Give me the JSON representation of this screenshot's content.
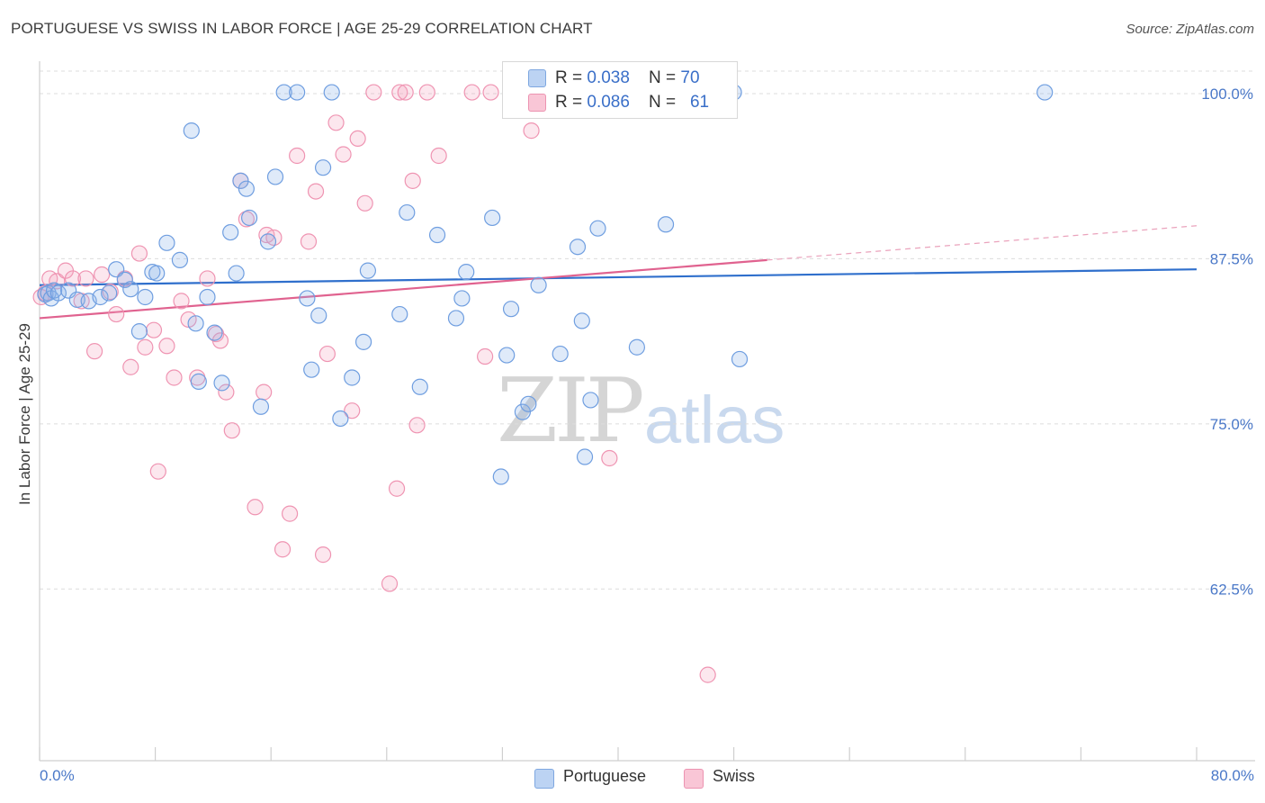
{
  "title": "PORTUGUESE VS SWISS IN LABOR FORCE | AGE 25-29 CORRELATION CHART",
  "source": "Source: ZipAtlas.com",
  "watermark": {
    "zip": "ZIP",
    "atlas": "atlas"
  },
  "colors": {
    "portuguese": "#6f9ee0",
    "swiss": "#ef94b2",
    "portuguese_line": "#2f6fcc",
    "swiss_line": "#e0628f"
  },
  "legend_top": {
    "portuguese": {
      "r_label": "R = ",
      "r_value": "0.038",
      "n_label": "N = ",
      "n_value": "70"
    },
    "swiss": {
      "r_label": "R = ",
      "r_value": "0.086",
      "n_label": "N = ",
      "n_value": "61"
    }
  },
  "chart_data": {
    "type": "scatter",
    "title": "PORTUGUESE VS SWISS IN LABOR FORCE | AGE 25-29 CORRELATION CHART",
    "xlabel": "",
    "ylabel": "In Labor Force | Age 25-29",
    "xlim": [
      0,
      80
    ],
    "ylim": [
      49.5,
      103
    ],
    "x_tick_labels": [
      "0.0%",
      "80.0%"
    ],
    "y_ticks": [
      62.5,
      75.0,
      87.5,
      100.0
    ],
    "y_tick_labels": [
      "62.5%",
      "75.0%",
      "87.5%",
      "100.0%"
    ],
    "grid": true,
    "legend_position": "top-center",
    "series": [
      {
        "name": "Portuguese",
        "r": 0.038,
        "n": 70,
        "trend": {
          "x": [
            0,
            80
          ],
          "y": [
            85.5,
            86.7
          ]
        },
        "points": [
          [
            0.4,
            84.8
          ],
          [
            0.6,
            84.9
          ],
          [
            0.8,
            84.5
          ],
          [
            1.0,
            85.1
          ],
          [
            1.3,
            84.9
          ],
          [
            2.0,
            85.1
          ],
          [
            2.6,
            84.4
          ],
          [
            3.4,
            84.3
          ],
          [
            4.2,
            84.6
          ],
          [
            4.8,
            84.9
          ],
          [
            5.3,
            86.7
          ],
          [
            5.9,
            85.9
          ],
          [
            6.3,
            85.2
          ],
          [
            6.9,
            82.0
          ],
          [
            7.3,
            84.6
          ],
          [
            7.8,
            86.5
          ],
          [
            8.1,
            86.4
          ],
          [
            8.8,
            88.7
          ],
          [
            9.7,
            87.4
          ],
          [
            10.5,
            97.2
          ],
          [
            10.8,
            82.6
          ],
          [
            11.0,
            78.2
          ],
          [
            11.6,
            84.6
          ],
          [
            12.1,
            81.9
          ],
          [
            12.6,
            78.1
          ],
          [
            13.2,
            89.5
          ],
          [
            13.6,
            86.4
          ],
          [
            13.9,
            93.4
          ],
          [
            14.3,
            92.8
          ],
          [
            14.5,
            90.6
          ],
          [
            15.3,
            76.3
          ],
          [
            15.8,
            88.8
          ],
          [
            16.3,
            93.7
          ],
          [
            16.9,
            100.1
          ],
          [
            17.8,
            100.1
          ],
          [
            18.5,
            84.5
          ],
          [
            18.8,
            79.1
          ],
          [
            19.3,
            83.2
          ],
          [
            19.6,
            94.4
          ],
          [
            20.2,
            100.1
          ],
          [
            20.8,
            75.4
          ],
          [
            21.6,
            78.5
          ],
          [
            22.4,
            81.2
          ],
          [
            22.7,
            86.6
          ],
          [
            24.9,
            83.3
          ],
          [
            25.4,
            91.0
          ],
          [
            26.3,
            77.8
          ],
          [
            27.5,
            89.3
          ],
          [
            28.8,
            83.0
          ],
          [
            29.2,
            84.5
          ],
          [
            29.5,
            86.5
          ],
          [
            31.3,
            90.6
          ],
          [
            31.9,
            71.0
          ],
          [
            32.3,
            80.2
          ],
          [
            32.6,
            83.7
          ],
          [
            33.4,
            75.9
          ],
          [
            33.8,
            76.5
          ],
          [
            34.5,
            85.5
          ],
          [
            35.0,
            100.1
          ],
          [
            36.0,
            80.3
          ],
          [
            37.2,
            88.4
          ],
          [
            37.5,
            82.8
          ],
          [
            37.7,
            72.5
          ],
          [
            38.1,
            76.8
          ],
          [
            38.6,
            89.8
          ],
          [
            41.3,
            80.8
          ],
          [
            43.3,
            90.1
          ],
          [
            48.0,
            100.1
          ],
          [
            48.4,
            79.9
          ],
          [
            69.5,
            100.1
          ]
        ]
      },
      {
        "name": "Swiss",
        "r": 0.086,
        "n": 61,
        "trend": {
          "x": [
            0,
            50.3
          ],
          "y": [
            83.0,
            87.4
          ],
          "extended": {
            "x": [
              50.3,
              80
            ],
            "y": [
              87.4,
              90.0
            ]
          }
        },
        "points": [
          [
            0.1,
            84.6
          ],
          [
            0.4,
            84.9
          ],
          [
            0.7,
            86.0
          ],
          [
            1.2,
            85.8
          ],
          [
            1.8,
            86.6
          ],
          [
            2.3,
            86.0
          ],
          [
            2.9,
            84.3
          ],
          [
            3.2,
            86.0
          ],
          [
            3.8,
            80.5
          ],
          [
            4.3,
            86.3
          ],
          [
            4.9,
            85.0
          ],
          [
            5.3,
            83.3
          ],
          [
            5.9,
            86.0
          ],
          [
            6.3,
            79.3
          ],
          [
            6.9,
            87.9
          ],
          [
            7.3,
            80.8
          ],
          [
            7.9,
            82.1
          ],
          [
            8.2,
            71.4
          ],
          [
            8.8,
            80.9
          ],
          [
            9.3,
            78.5
          ],
          [
            9.8,
            84.3
          ],
          [
            10.3,
            82.9
          ],
          [
            10.9,
            78.5
          ],
          [
            11.6,
            86.0
          ],
          [
            12.2,
            81.8
          ],
          [
            12.5,
            81.3
          ],
          [
            12.9,
            77.4
          ],
          [
            13.3,
            74.5
          ],
          [
            13.9,
            93.4
          ],
          [
            14.3,
            90.5
          ],
          [
            14.9,
            68.7
          ],
          [
            15.5,
            77.4
          ],
          [
            15.7,
            89.3
          ],
          [
            16.2,
            89.1
          ],
          [
            16.8,
            65.5
          ],
          [
            17.3,
            68.2
          ],
          [
            17.8,
            95.3
          ],
          [
            18.6,
            88.8
          ],
          [
            19.1,
            92.6
          ],
          [
            19.6,
            65.1
          ],
          [
            19.9,
            80.3
          ],
          [
            20.5,
            97.8
          ],
          [
            21.0,
            95.4
          ],
          [
            21.6,
            76.0
          ],
          [
            22.0,
            96.6
          ],
          [
            22.5,
            91.7
          ],
          [
            23.1,
            100.1
          ],
          [
            24.2,
            62.9
          ],
          [
            24.7,
            70.1
          ],
          [
            24.9,
            100.1
          ],
          [
            25.3,
            100.1
          ],
          [
            25.8,
            93.4
          ],
          [
            26.1,
            74.9
          ],
          [
            26.8,
            100.1
          ],
          [
            27.6,
            95.3
          ],
          [
            29.9,
            100.1
          ],
          [
            30.8,
            80.1
          ],
          [
            31.2,
            100.1
          ],
          [
            34.0,
            97.2
          ],
          [
            39.4,
            72.4
          ],
          [
            46.2,
            56.0
          ]
        ]
      }
    ]
  },
  "legend_bottom": [
    "Portuguese",
    "Swiss"
  ]
}
